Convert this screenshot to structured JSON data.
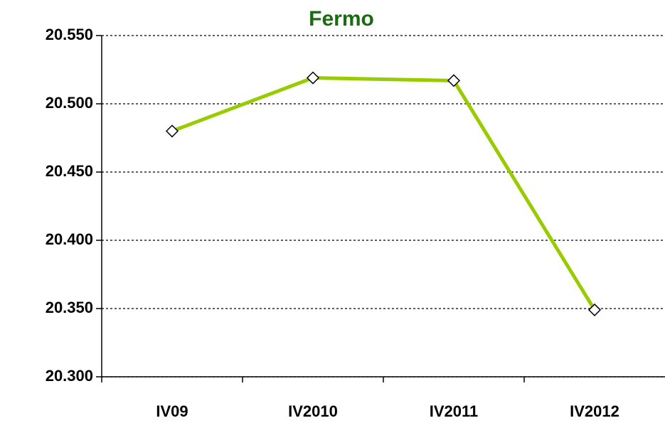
{
  "chart_data": {
    "type": "line",
    "title": "Fermo",
    "categories": [
      "IV09",
      "IV2010",
      "IV2011",
      "IV2012"
    ],
    "series": [
      {
        "name": "Fermo",
        "color": "#99cc00",
        "values": [
          20480,
          20519,
          20517,
          20349
        ]
      }
    ],
    "ylim": [
      20300,
      20550
    ],
    "yticks": [
      {
        "value": 20300,
        "label": "20.300"
      },
      {
        "value": 20350,
        "label": "20.350"
      },
      {
        "value": 20400,
        "label": "20.400"
      },
      {
        "value": 20450,
        "label": "20.450"
      },
      {
        "value": 20500,
        "label": "20.500"
      },
      {
        "value": 20550,
        "label": "20.550"
      }
    ],
    "grid": true
  }
}
